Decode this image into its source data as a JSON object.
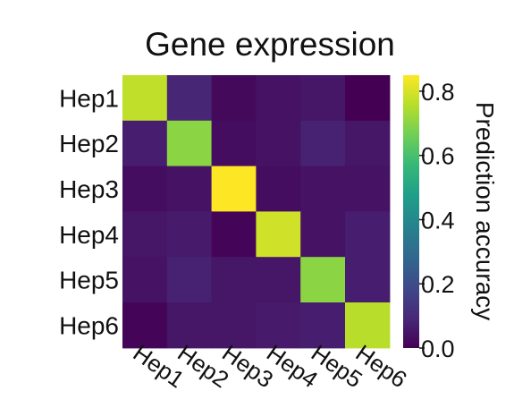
{
  "chart_data": {
    "type": "heatmap",
    "title": "Gene expression",
    "rows": [
      "Hep1",
      "Hep2",
      "Hep3",
      "Hep4",
      "Hep5",
      "Hep6"
    ],
    "columns": [
      "Hep1",
      "Hep2",
      "Hep3",
      "Hep4",
      "Hep5",
      "Hep6"
    ],
    "values": [
      [
        0.77,
        0.09,
        0.02,
        0.04,
        0.05,
        0.0
      ],
      [
        0.07,
        0.7,
        0.03,
        0.04,
        0.08,
        0.05
      ],
      [
        0.03,
        0.04,
        0.85,
        0.03,
        0.04,
        0.04
      ],
      [
        0.05,
        0.06,
        0.01,
        0.79,
        0.04,
        0.07
      ],
      [
        0.04,
        0.08,
        0.05,
        0.05,
        0.7,
        0.07
      ],
      [
        0.01,
        0.05,
        0.05,
        0.06,
        0.07,
        0.76
      ]
    ],
    "colorbar": {
      "label": "Prediction accuracy",
      "range": [
        0.0,
        0.85
      ],
      "ticks": [
        0.0,
        0.2,
        0.4,
        0.6,
        0.8
      ],
      "tick_labels": [
        "0.0",
        "0.2",
        "0.4",
        "0.6",
        "0.8"
      ],
      "colormap": "viridis"
    }
  },
  "colormap_stops": [
    "#440154",
    "#482878",
    "#3e4989",
    "#31688e",
    "#26828e",
    "#1f9e89",
    "#35b779",
    "#6ece58",
    "#b5de2b",
    "#fde725"
  ]
}
